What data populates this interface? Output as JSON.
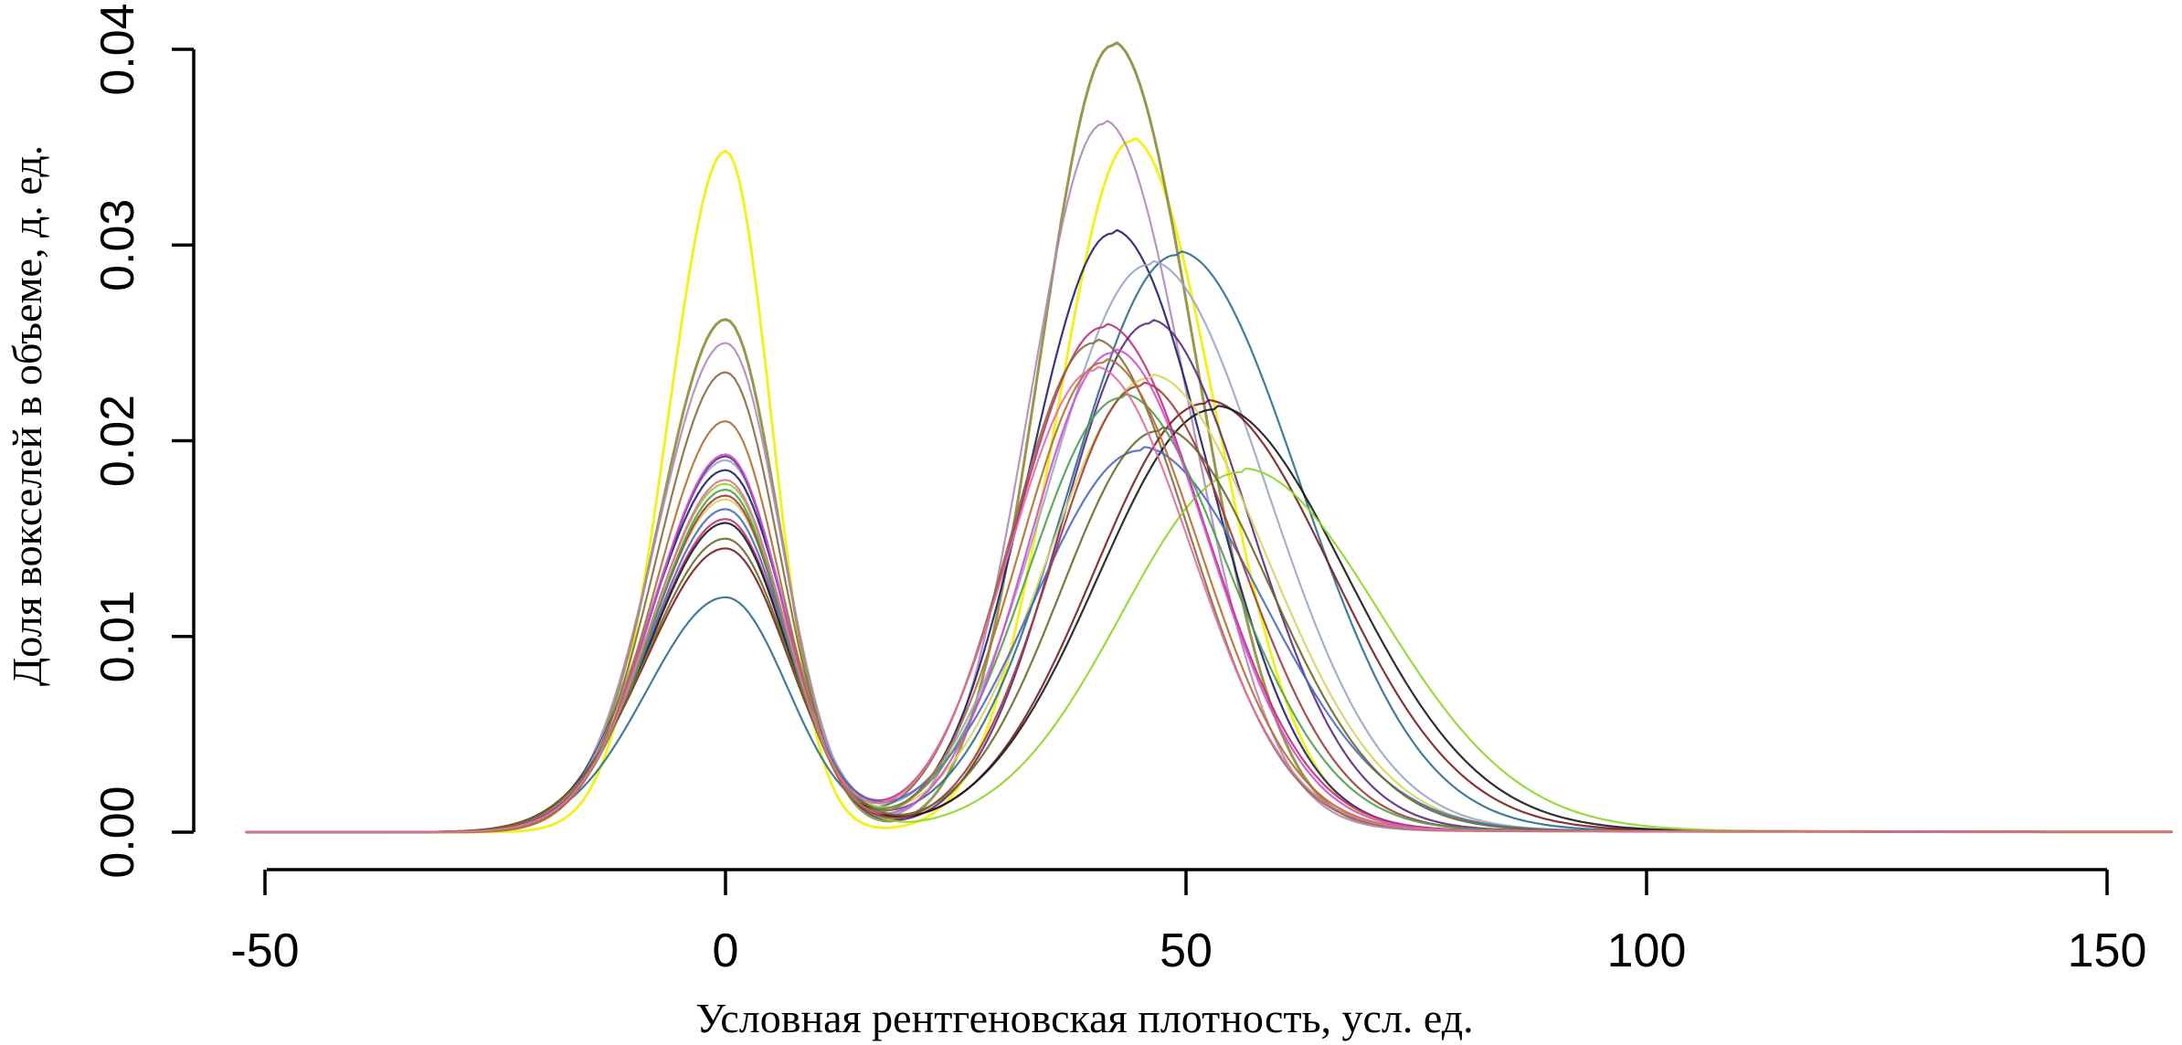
{
  "chart_data": {
    "type": "line",
    "title": "",
    "xlabel": "Условная рентгеновская плотность, усл. ед.",
    "ylabel": "Доля вокселей в объеме, д. ед.",
    "xlim": [
      -52,
      157
    ],
    "ylim": [
      0,
      0.04
    ],
    "xticks": [
      -50,
      0,
      50,
      100,
      150
    ],
    "xtick_labels": [
      "-50",
      "0",
      "50",
      "100",
      "150"
    ],
    "yticks": [
      0,
      0.01,
      0.02,
      0.03,
      0.04
    ],
    "ytick_labels": [
      "0.00",
      "0.01",
      "0.02",
      "0.03",
      "0.04"
    ],
    "grid": false,
    "legend": "none",
    "series_note_format": "each series is a bimodal density: peak1 at x=0 with height h1 and width w1, valley level at x=~20, peak2 at position c2 with height h2 and width w2",
    "series": [
      {
        "color": "#F2EF0A",
        "h1": 0.0348,
        "w1": 5.0,
        "c2": 44,
        "h2": 0.0353,
        "w2": 8.0
      },
      {
        "color": "#8C8C3A",
        "h1": 0.0262,
        "w1": 5.8,
        "c2": 42,
        "h2": 0.0402,
        "w2": 7.8
      },
      {
        "color": "#B088B8",
        "h1": 0.025,
        "w1": 6.0,
        "c2": 41,
        "h2": 0.0362,
        "w2": 8.0
      },
      {
        "color": "#1F1F6E",
        "h1": 0.0185,
        "w1": 6.5,
        "c2": 42,
        "h2": 0.0306,
        "w2": 9.0
      },
      {
        "color": "#2C6E8E",
        "h1": 0.012,
        "w1": 6.8,
        "c2": 49,
        "h2": 0.0295,
        "w2": 11.5
      },
      {
        "color": "#9AA8C8",
        "h1": 0.019,
        "w1": 6.4,
        "c2": 46,
        "h2": 0.029,
        "w2": 11.0
      },
      {
        "color": "#C0307A",
        "h1": 0.016,
        "w1": 6.6,
        "c2": 41,
        "h2": 0.0258,
        "w2": 9.5
      },
      {
        "color": "#5A2A80",
        "h1": 0.0192,
        "w1": 6.2,
        "c2": 46,
        "h2": 0.026,
        "w2": 9.5
      },
      {
        "color": "#8A6A40",
        "h1": 0.0235,
        "w1": 5.9,
        "c2": 40,
        "h2": 0.025,
        "w2": 9.0
      },
      {
        "color": "#7A1F1F",
        "h1": 0.0145,
        "w1": 6.9,
        "c2": 52,
        "h2": 0.0219,
        "w2": 12.0
      },
      {
        "color": "#1A1A1A",
        "h1": 0.0158,
        "w1": 6.6,
        "c2": 53,
        "h2": 0.0216,
        "w2": 12.5
      },
      {
        "color": "#8FD62A",
        "h1": 0.0178,
        "w1": 6.4,
        "c2": 56,
        "h2": 0.0184,
        "w2": 13.0
      },
      {
        "color": "#D8D460",
        "h1": 0.017,
        "w1": 6.5,
        "c2": 46,
        "h2": 0.0232,
        "w2": 11.0
      },
      {
        "color": "#4A6AC8",
        "h1": 0.0165,
        "w1": 6.5,
        "c2": 45,
        "h2": 0.0195,
        "w2": 11.5
      },
      {
        "color": "#A23B3B",
        "h1": 0.0172,
        "w1": 6.4,
        "c2": 45,
        "h2": 0.0228,
        "w2": 9.5
      },
      {
        "color": "#50A050",
        "h1": 0.0175,
        "w1": 6.3,
        "c2": 43,
        "h2": 0.0222,
        "w2": 10.0
      },
      {
        "color": "#D050D0",
        "h1": 0.0193,
        "w1": 6.2,
        "c2": 42,
        "h2": 0.0245,
        "w2": 9.0
      },
      {
        "color": "#6A6A2A",
        "h1": 0.015,
        "w1": 6.8,
        "c2": 47,
        "h2": 0.0205,
        "w2": 10.5
      },
      {
        "color": "#B07030",
        "h1": 0.021,
        "w1": 6.0,
        "c2": 41,
        "h2": 0.024,
        "w2": 9.0
      },
      {
        "color": "#E070A0",
        "h1": 0.018,
        "w1": 6.3,
        "c2": 40,
        "h2": 0.0236,
        "w2": 9.2
      }
    ]
  }
}
